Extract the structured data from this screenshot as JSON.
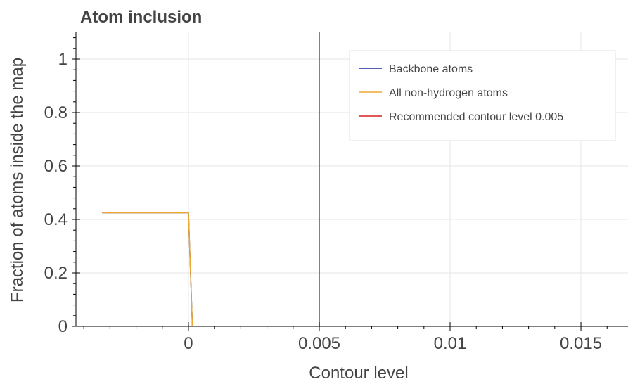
{
  "chart_data": {
    "type": "line",
    "title": "Atom inclusion",
    "xlabel": "Contour level",
    "ylabel": "Fraction of atoms inside the map",
    "xlim": [
      -0.0043,
      0.0168
    ],
    "ylim": [
      0,
      1.1
    ],
    "x_ticks": [
      0,
      0.005,
      0.01,
      0.015
    ],
    "x_tick_labels": [
      "0",
      "0.005",
      "0.01",
      "0.015"
    ],
    "y_ticks": [
      0,
      0.2,
      0.4,
      0.6,
      0.8,
      1
    ],
    "y_tick_labels": [
      "0",
      "0.2",
      "0.4",
      "0.6",
      "0.8",
      "1"
    ],
    "grid": true,
    "legend_position": "top-right",
    "series": [
      {
        "name": "Backbone atoms",
        "color": "#1f2fa0",
        "x": [
          -0.0033,
          0.0,
          0.00015
        ],
        "y": [
          0.425,
          0.425,
          0.0
        ]
      },
      {
        "name": "All non-hydrogen atoms",
        "color": "#f0a830",
        "x": [
          -0.0033,
          0.0,
          0.00015
        ],
        "y": [
          0.425,
          0.425,
          0.0
        ]
      }
    ],
    "reference_line": {
      "name": "Recommended contour level 0.005",
      "color": "#d62020",
      "x": 0.005
    }
  }
}
